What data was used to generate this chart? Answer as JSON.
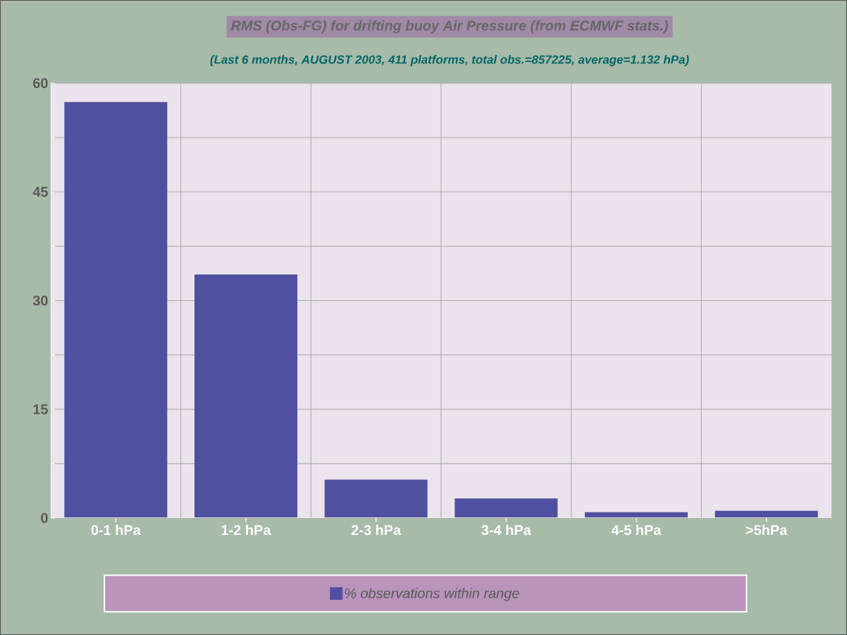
{
  "chart_data": {
    "type": "bar",
    "title": "RMS (Obs-FG) for drifting buoy Air Pressure (from ECMWF stats.)",
    "subtitle": "(Last 6 months,  AUGUST    2003, 411 platforms, total obs.=857225, average=1.132 hPa)",
    "categories": [
      "0-1 hPa",
      "1-2 hPa",
      "2-3 hPa",
      "3-4 hPa",
      "4-5 hPa",
      ">5hPa"
    ],
    "series": [
      {
        "name": "% observations within range",
        "color": "#5050a0",
        "values": [
          57.4,
          33.6,
          5.3,
          2.7,
          0.8,
          1.0
        ]
      }
    ],
    "ylim": [
      0,
      60
    ],
    "yticks": [
      0,
      {
        "value": 7.5,
        "label": null
      },
      15,
      {
        "value": 22.5,
        "label": null
      },
      30,
      {
        "value": 37.5,
        "label": null
      },
      45,
      {
        "value": 52.5,
        "label": null
      },
      60
    ],
    "grid": true,
    "legend": "bottom"
  }
}
